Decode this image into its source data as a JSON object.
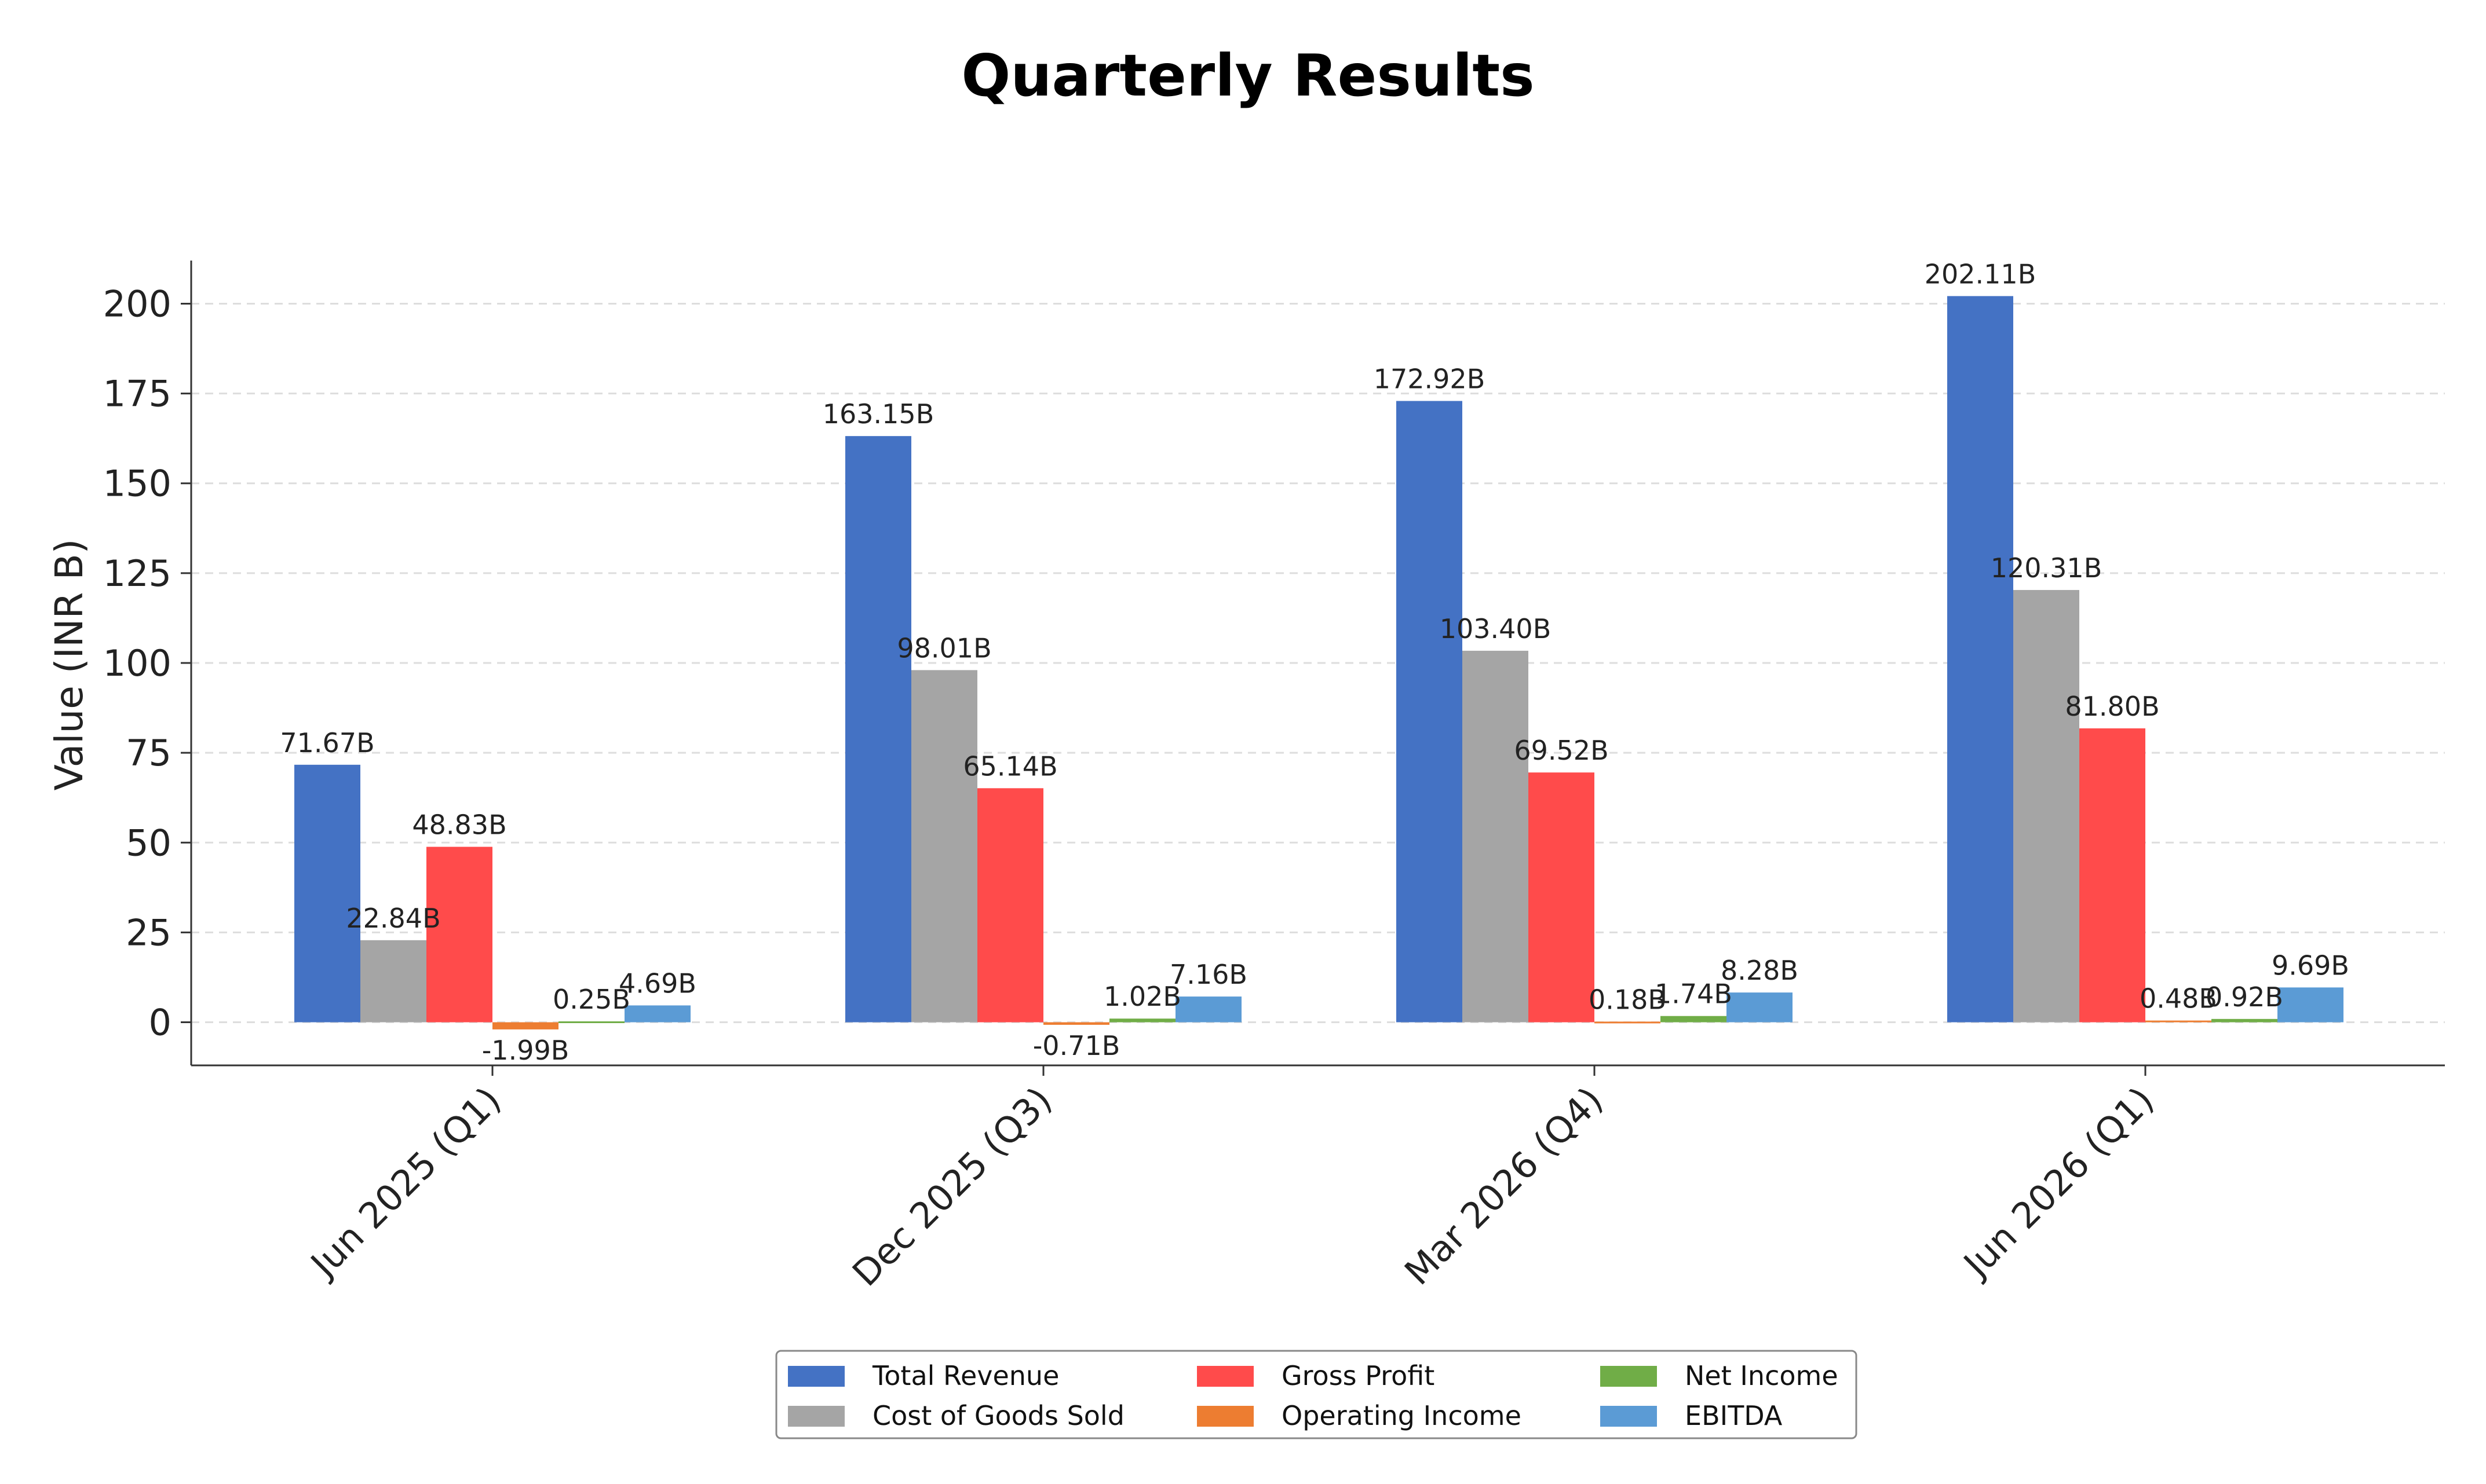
{
  "chart_data": {
    "type": "bar",
    "title": "Quarterly Results",
    "xlabel": "",
    "ylabel": "Value (INR B)",
    "ylim": [
      -12,
      212
    ],
    "yticks": [
      0,
      25,
      50,
      75,
      100,
      125,
      150,
      175,
      200
    ],
    "grid": "horizontal dashed",
    "legend_position": "bottom-center",
    "categories": [
      "Jun 2025 (Q1)",
      "Dec 2025 (Q3)",
      "Mar 2026 (Q4)",
      "Jun 2026 (Q1)"
    ],
    "series": [
      {
        "name": "Total Revenue",
        "color": "#4472C4",
        "values": [
          71.67,
          163.15,
          172.92,
          202.11
        ],
        "labels": [
          "71.67B",
          "163.15B",
          "172.92B",
          "202.11B"
        ]
      },
      {
        "name": "Cost of Goods Sold",
        "color": "#A5A5A5",
        "values": [
          22.84,
          98.01,
          103.4,
          120.31
        ],
        "labels": [
          "22.84B",
          "98.01B",
          "103.40B",
          "120.31B"
        ]
      },
      {
        "name": "Gross Profit",
        "color": "#FF4B4B",
        "values": [
          48.83,
          65.14,
          69.52,
          81.8
        ],
        "labels": [
          "48.83B",
          "65.14B",
          "69.52B",
          "81.80B"
        ]
      },
      {
        "name": "Operating Income",
        "color": "#ED7D31",
        "values": [
          -1.99,
          -0.71,
          0.18,
          0.48
        ],
        "labels": [
          "-1.99B",
          "-0.71B",
          "0.18B",
          "0.48B"
        ]
      },
      {
        "name": "Net Income",
        "color": "#70AD47",
        "values": [
          0.25,
          1.02,
          1.74,
          0.92
        ],
        "labels": [
          "0.25B",
          "1.02B",
          "1.74B",
          "0.92B"
        ]
      },
      {
        "name": "EBITDA",
        "color": "#5B9BD5",
        "values": [
          4.69,
          7.16,
          8.28,
          9.69
        ],
        "labels": [
          "4.69B",
          "7.16B",
          "8.28B",
          "9.69B"
        ]
      }
    ]
  }
}
